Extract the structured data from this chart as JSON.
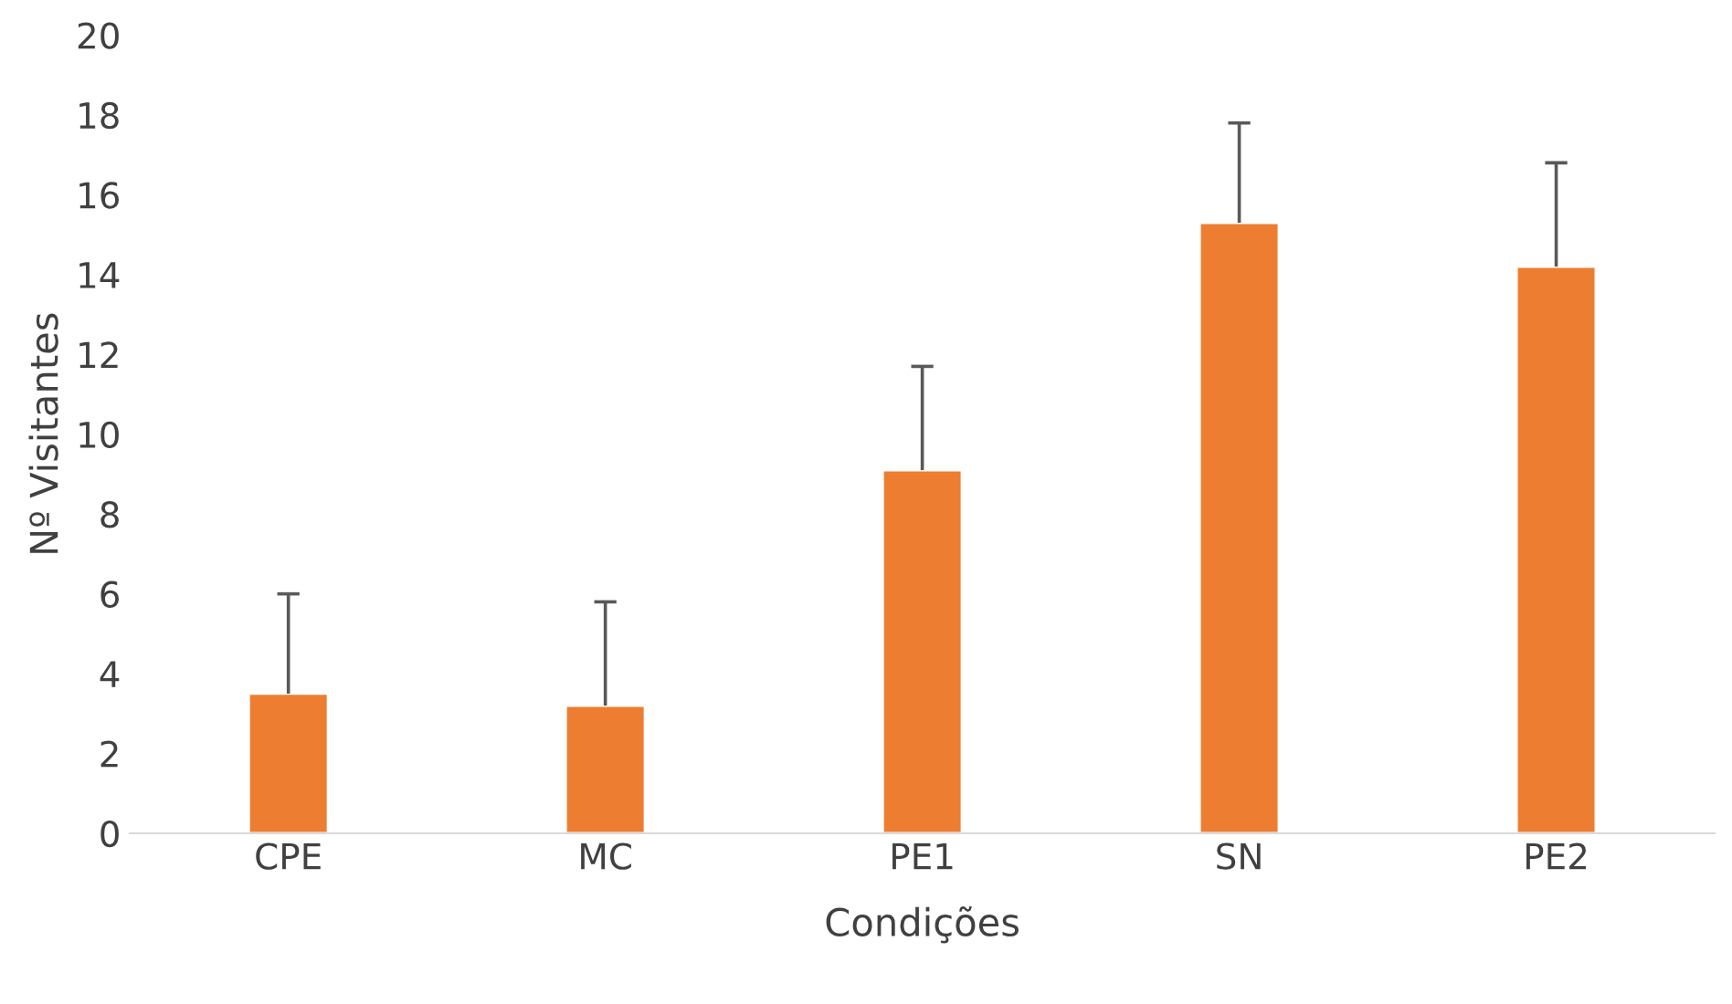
{
  "chart_data": {
    "type": "bar",
    "xlabel": "Condições",
    "ylabel": "Nº Visitantes",
    "categories": [
      "CPE",
      "MC",
      "PE1",
      "SN",
      "PE2"
    ],
    "values": [
      3.5,
      3.2,
      9.1,
      15.3,
      14.2
    ],
    "errors": [
      [
        3.5,
        6.0
      ],
      [
        3.2,
        5.8
      ],
      [
        9.1,
        11.7
      ],
      [
        15.3,
        17.8
      ],
      [
        14.2,
        16.8
      ]
    ],
    "color": "#ed7d31",
    "ylim": [
      0,
      20
    ],
    "yticks": [
      0,
      2,
      4,
      6,
      8,
      10,
      12,
      14,
      16,
      18,
      20
    ],
    "grid": false,
    "legend": false
  }
}
